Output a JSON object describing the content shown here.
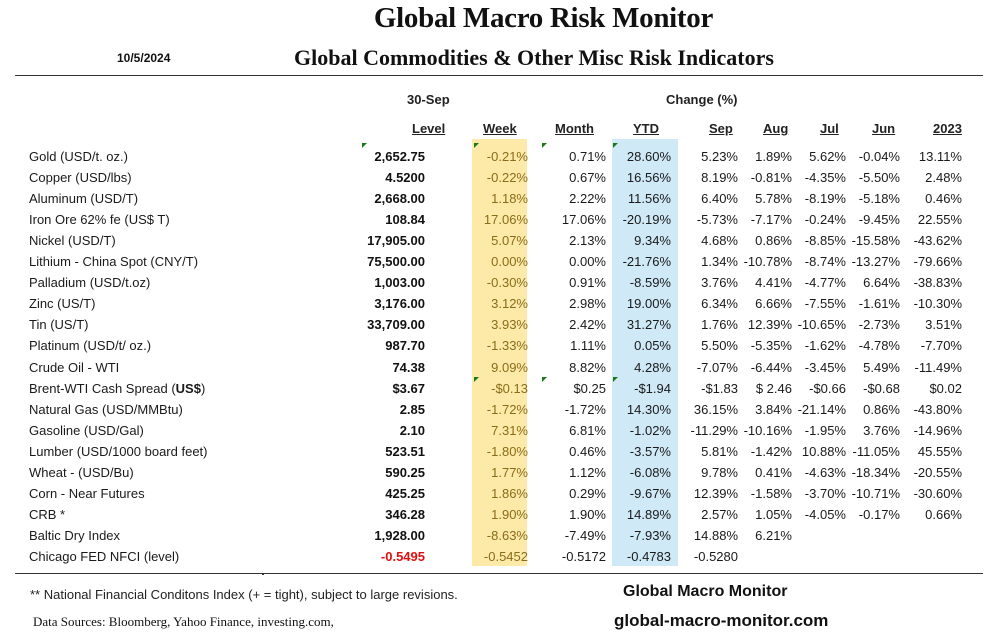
{
  "header": {
    "title": "Global Macro Risk Monitor",
    "date": "10/5/2024",
    "subtitle": "Global Commodities & Other Misc Risk Indicators"
  },
  "columns": {
    "date_label": "30-Sep",
    "change_label": "Change (%)",
    "level": "Level",
    "week": "Week",
    "month": "Month",
    "ytd": "YTD",
    "sep": "Sep",
    "aug": "Aug",
    "jul": "Jul",
    "jun": "Jun",
    "y2023": "2023"
  },
  "colors": {
    "week_band": "#fde9a8",
    "ytd_band": "#cfe9f7",
    "negative_level": "#e01010",
    "comment_marker": "#1a7a1a"
  },
  "rows": [
    {
      "name": "Gold (USD/t. oz.)",
      "level": "2,652.75",
      "week": "-0.21%",
      "month": "0.71%",
      "ytd": "28.60%",
      "sep": "5.23%",
      "aug": "1.89%",
      "jul": "5.62%",
      "jun": "-0.04%",
      "y2023": "13.11%"
    },
    {
      "name": "Copper (USD/lbs)",
      "level": "4.5200",
      "week": "-0.22%",
      "month": "0.67%",
      "ytd": "16.56%",
      "sep": "8.19%",
      "aug": "-0.81%",
      "jul": "-4.35%",
      "jun": "-5.50%",
      "y2023": "2.48%"
    },
    {
      "name": "Aluminum (USD/T)",
      "level": "2,668.00",
      "week": "1.18%",
      "month": "2.22%",
      "ytd": "11.56%",
      "sep": "6.40%",
      "aug": "5.78%",
      "jul": "-8.19%",
      "jun": "-5.18%",
      "y2023": "0.46%"
    },
    {
      "name": "Iron Ore 62% fe (US$ T)",
      "level": "108.84",
      "week": "17.06%",
      "month": "17.06%",
      "ytd": "-20.19%",
      "sep": "-5.73%",
      "aug": "-7.17%",
      "jul": "-0.24%",
      "jun": "-9.45%",
      "y2023": "22.55%"
    },
    {
      "name": "Nickel (USD/T)",
      "level": "17,905.00",
      "week": "5.07%",
      "month": "2.13%",
      "ytd": "9.34%",
      "sep": "4.68%",
      "aug": "0.86%",
      "jul": "-8.85%",
      "jun": "-15.58%",
      "y2023": "-43.62%"
    },
    {
      "name": "Lithium - China Spot (CNY/T)",
      "level": "75,500.00",
      "week": "0.00%",
      "month": "0.00%",
      "ytd": "-21.76%",
      "sep": "1.34%",
      "aug": "-10.78%",
      "jul": "-8.74%",
      "jun": "-13.27%",
      "y2023": "-79.66%"
    },
    {
      "name": "Palladium (USD/t.oz)",
      "level": "1,003.00",
      "week": "-0.30%",
      "month": "0.91%",
      "ytd": "-8.59%",
      "sep": "3.76%",
      "aug": "4.41%",
      "jul": "-4.77%",
      "jun": "6.64%",
      "y2023": "-38.83%"
    },
    {
      "name": "Zinc (US/T)",
      "level": "3,176.00",
      "week": "3.12%",
      "month": "2.98%",
      "ytd": "19.00%",
      "sep": "6.34%",
      "aug": "6.66%",
      "jul": "-7.55%",
      "jun": "-1.61%",
      "y2023": "-10.30%"
    },
    {
      "name": "Tin (US/T)",
      "level": "33,709.00",
      "week": "3.93%",
      "month": "2.42%",
      "ytd": "31.27%",
      "sep": "1.76%",
      "aug": "12.39%",
      "jul": "-10.65%",
      "jun": "-2.73%",
      "y2023": "3.51%"
    },
    {
      "name": "Platinum (USD/t/ oz.)",
      "level": "987.70",
      "week": "-1.33%",
      "month": "1.11%",
      "ytd": "0.05%",
      "sep": "5.50%",
      "aug": "-5.35%",
      "jul": "-1.62%",
      "jun": "-4.78%",
      "y2023": "-7.70%"
    },
    {
      "name": "Crude Oil - WTI",
      "level": "74.38",
      "week": "9.09%",
      "month": "8.82%",
      "ytd": "4.28%",
      "sep": "-7.07%",
      "aug": "-6.44%",
      "jul": "-3.45%",
      "jun": "5.49%",
      "y2023": "-11.49%"
    },
    {
      "name": "Brent-WTI Cash Spread (",
      "name_bold": "US$",
      "name_end": ")",
      "level": "$3.67",
      "week": "-$0.13",
      "month": "$0.25",
      "ytd": "-$1.94",
      "sep": "-$1.83",
      "aug": "$ 2.46",
      "jul": "-$0.66",
      "jun": "-$0.68",
      "y2023": "$0.02"
    },
    {
      "name": "Natural Gas  (USD/MMBtu)",
      "level": "2.85",
      "week": "-1.72%",
      "month": "-1.72%",
      "ytd": "14.30%",
      "sep": "36.15%",
      "aug": "3.84%",
      "jul": "-21.14%",
      "jun": "0.86%",
      "y2023": "-43.80%"
    },
    {
      "name": "Gasoline (USD/Gal)",
      "level": "2.10",
      "week": "7.31%",
      "month": "6.81%",
      "ytd": "-1.02%",
      "sep": "-11.29%",
      "aug": "-10.16%",
      "jul": "-1.95%",
      "jun": "3.76%",
      "y2023": "-14.96%"
    },
    {
      "name": "Lumber (USD/1000 board feet)",
      "level": "523.51",
      "week": "-1.80%",
      "month": "0.46%",
      "ytd": "-3.57%",
      "sep": "5.81%",
      "aug": "-1.42%",
      "jul": "10.88%",
      "jun": "-11.05%",
      "y2023": "45.55%"
    },
    {
      "name": "Wheat - (USD/Bu)",
      "level": "590.25",
      "week": "1.77%",
      "month": "1.12%",
      "ytd": "-6.08%",
      "sep": "9.78%",
      "aug": "0.41%",
      "jul": "-4.63%",
      "jun": "-18.34%",
      "y2023": "-20.55%"
    },
    {
      "name": "Corn - Near Futures",
      "level": "425.25",
      "week": "1.86%",
      "month": "0.29%",
      "ytd": "-9.67%",
      "sep": "12.39%",
      "aug": "-1.58%",
      "jul": "-3.70%",
      "jun": "-10.71%",
      "y2023": "-30.60%"
    },
    {
      "name": "CRB *",
      "level": "346.28",
      "week": "1.90%",
      "month": "1.90%",
      "ytd": "14.89%",
      "sep": "2.57%",
      "aug": "1.05%",
      "jul": "-4.05%",
      "jun": "-0.17%",
      "y2023": "0.66%"
    },
    {
      "name": "Baltic Dry Index",
      "level": "1,928.00",
      "week": "-8.63%",
      "month": "-7.49%",
      "ytd": "-7.93%",
      "sep": "14.88%",
      "aug": "6.21%",
      "jul": "",
      "jun": "",
      "y2023": ""
    },
    {
      "name": "Chicago FED NFCI (level)",
      "level": "-0.5495",
      "level_negative_red": true,
      "week": "-0.5452",
      "month": "-0.5172",
      "ytd": "-0.4783",
      "sep": "-0.5280",
      "aug": "",
      "jul": "",
      "jun": "",
      "y2023": ""
    }
  ],
  "footer": {
    "note": "** National Financial Conditons Index (+ =  tight), subject to large revisions.",
    "sources": "Data Sources:  Bloomberg,  Yahoo Finance, investing.com,",
    "brand_name": "Global Macro Monitor",
    "brand_url": "global-macro-monitor.com"
  }
}
